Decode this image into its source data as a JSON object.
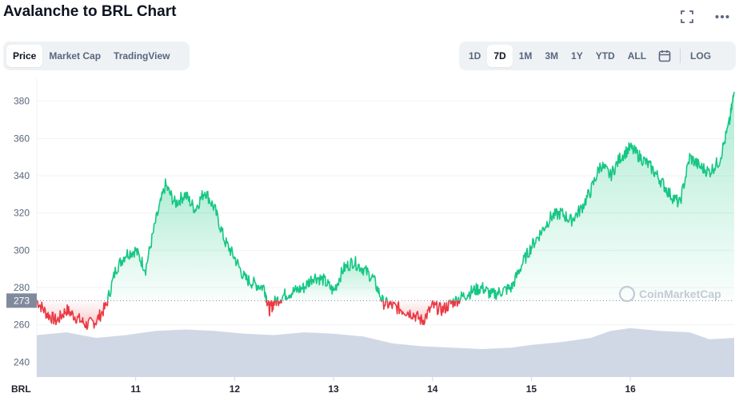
{
  "header": {
    "title": "Avalanche to BRL Chart"
  },
  "icons": {
    "fullscreen": "fullscreen-icon",
    "more": "more-icon",
    "calendar": "calendar-icon",
    "logo": "coinmarketcap-logo"
  },
  "tabs_left": [
    {
      "label": "Price",
      "active": true
    },
    {
      "label": "Market Cap",
      "active": false
    },
    {
      "label": "TradingView",
      "active": false
    }
  ],
  "tabs_right": [
    {
      "label": "1D",
      "active": false
    },
    {
      "label": "7D",
      "active": true
    },
    {
      "label": "1M",
      "active": false
    },
    {
      "label": "3M",
      "active": false
    },
    {
      "label": "1Y",
      "active": false
    },
    {
      "label": "YTD",
      "active": false
    },
    {
      "label": "ALL",
      "active": false
    }
  ],
  "log_label": "LOG",
  "watermark": "CoinMarketCap",
  "colors": {
    "up": "#16c784",
    "down": "#ea3943",
    "volume": "#cfd6e4",
    "grid": "#eff2f5"
  },
  "chart_data": {
    "type": "line",
    "currency_label": "BRL",
    "reference_value": 273,
    "reference_label": "273",
    "ylim": [
      232,
      388
    ],
    "yticks": [
      240,
      260,
      280,
      300,
      320,
      340,
      360,
      380
    ],
    "xlim": [
      10.0,
      17.05
    ],
    "xticks": [
      {
        "label": "11",
        "x": 11
      },
      {
        "label": "12",
        "x": 12
      },
      {
        "label": "13",
        "x": 13
      },
      {
        "label": "14",
        "x": 14
      },
      {
        "label": "15",
        "x": 15
      },
      {
        "label": "16",
        "x": 16
      }
    ],
    "series": [
      {
        "x": [
          10.0,
          10.1,
          10.2,
          10.3,
          10.4,
          10.5,
          10.6,
          10.7,
          10.8,
          10.9,
          11.0,
          11.1,
          11.2,
          11.3,
          11.4,
          11.5,
          11.6,
          11.7,
          11.8,
          11.9,
          12.0,
          12.1,
          12.2,
          12.3,
          12.35,
          12.4,
          12.5,
          12.6,
          12.7,
          12.8,
          12.9,
          13.0,
          13.1,
          13.2,
          13.3,
          13.4,
          13.5,
          13.6,
          13.7,
          13.8,
          13.9,
          14.0,
          14.1,
          14.2,
          14.3,
          14.4,
          14.5,
          14.6,
          14.7,
          14.8,
          14.9,
          15.0,
          15.1,
          15.2,
          15.3,
          15.4,
          15.5,
          15.6,
          15.7,
          15.8,
          15.9,
          16.0,
          16.1,
          16.2,
          16.3,
          16.4,
          16.5,
          16.6,
          16.7,
          16.8,
          16.9,
          17.0,
          17.05
        ],
        "values": [
          273,
          266,
          262,
          268,
          264,
          260,
          262,
          270,
          290,
          298,
          300,
          290,
          315,
          335,
          325,
          330,
          322,
          332,
          322,
          305,
          296,
          285,
          282,
          280,
          268,
          272,
          276,
          278,
          280,
          286,
          284,
          278,
          290,
          294,
          290,
          285,
          272,
          270,
          268,
          266,
          262,
          270,
          268,
          272,
          275,
          278,
          280,
          276,
          278,
          280,
          292,
          302,
          310,
          318,
          320,
          316,
          322,
          332,
          346,
          340,
          350,
          355,
          350,
          345,
          338,
          330,
          325,
          350,
          345,
          342,
          348,
          368,
          385
        ]
      }
    ],
    "volume": {
      "x": [
        10.0,
        10.3,
        10.6,
        10.9,
        11.2,
        11.5,
        11.8,
        12.1,
        12.4,
        12.7,
        13.0,
        13.3,
        13.6,
        13.9,
        14.2,
        14.5,
        14.8,
        15.0,
        15.3,
        15.6,
        15.8,
        16.0,
        16.3,
        16.6,
        16.8,
        17.05
      ],
      "values": [
        30,
        32,
        28,
        30,
        33,
        34,
        33,
        31,
        30,
        32,
        31,
        29,
        24,
        22,
        21,
        20,
        21,
        23,
        25,
        28,
        33,
        35,
        33,
        32,
        27,
        28
      ]
    }
  }
}
